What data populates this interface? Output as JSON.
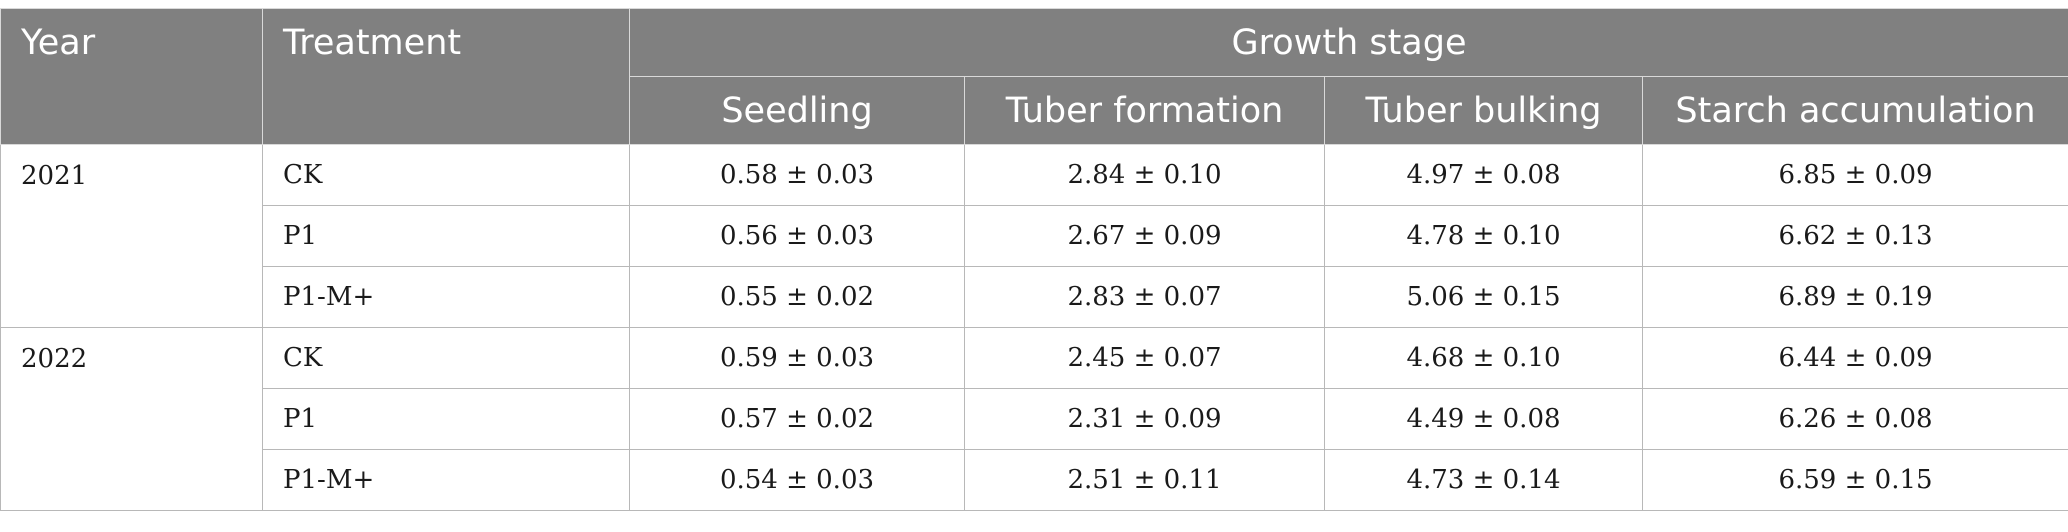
{
  "table": {
    "headers": {
      "year": "Year",
      "treatment": "Treatment",
      "group": "Growth stage",
      "stages": [
        "Seedling",
        "Tuber formation",
        "Tuber bulking",
        "Starch accumulation"
      ]
    },
    "groups": [
      {
        "year": "2021",
        "rows": [
          {
            "treatment": "CK",
            "values": [
              "0.58 ± 0.03",
              "2.84 ± 0.10",
              "4.97 ± 0.08",
              "6.85 ± 0.09"
            ]
          },
          {
            "treatment": "P1",
            "values": [
              "0.56 ± 0.03",
              "2.67 ± 0.09",
              "4.78 ± 0.10",
              "6.62 ± 0.13"
            ]
          },
          {
            "treatment": "P1-M+",
            "values": [
              "0.55 ± 0.02",
              "2.83 ± 0.07",
              "5.06 ± 0.15",
              "6.89 ± 0.19"
            ]
          }
        ]
      },
      {
        "year": "2022",
        "rows": [
          {
            "treatment": "CK",
            "values": [
              "0.59 ± 0.03",
              "2.45 ± 0.07",
              "4.68 ± 0.10",
              "6.44 ± 0.09"
            ]
          },
          {
            "treatment": "P1",
            "values": [
              "0.57 ± 0.02",
              "2.31 ± 0.09",
              "4.49 ± 0.08",
              "6.26 ± 0.08"
            ]
          },
          {
            "treatment": "P1-M+",
            "values": [
              "0.54 ± 0.03",
              "2.51 ± 0.11",
              "4.73 ± 0.14",
              "6.59 ± 0.15"
            ]
          }
        ]
      }
    ]
  }
}
